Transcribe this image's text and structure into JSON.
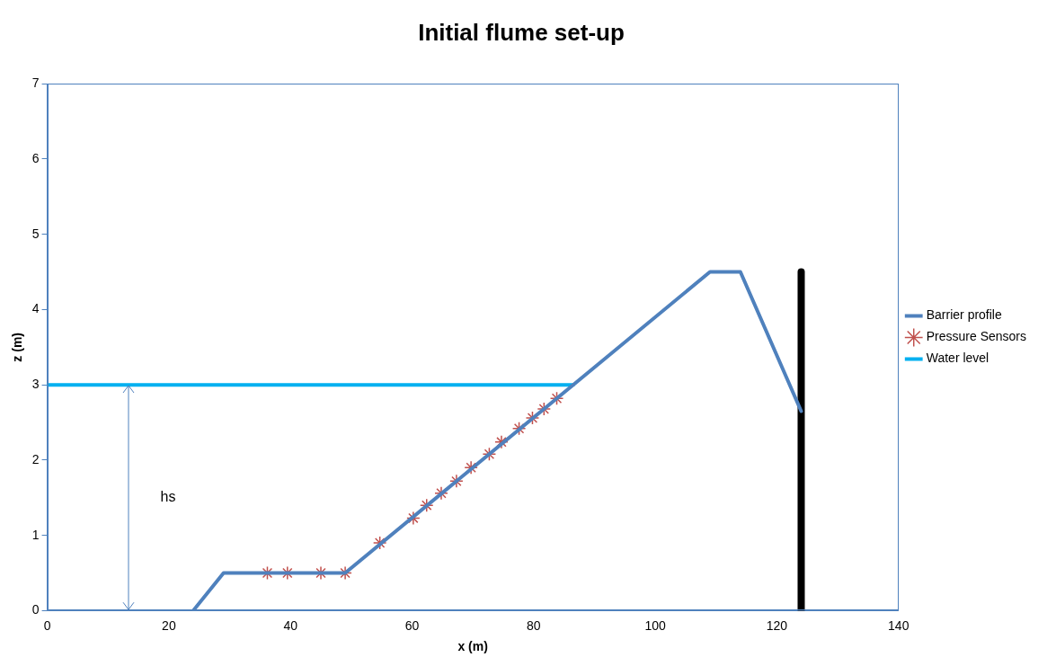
{
  "chart_data": {
    "type": "line",
    "title": "Initial flume set-up",
    "xlabel": "x (m)",
    "ylabel": "z (m)",
    "xlim": [
      0,
      140
    ],
    "xticks": [
      0,
      20,
      40,
      60,
      80,
      100,
      120,
      140
    ],
    "ylim": [
      0,
      7
    ],
    "yticks": [
      0,
      1,
      2,
      3,
      4,
      5,
      6,
      7
    ],
    "grid": false,
    "legend": "right",
    "annotations": [
      "hs"
    ],
    "series": [
      {
        "name": "Barrier profile",
        "color": "#4f81bd",
        "marker": "none",
        "x": [
          24,
          29,
          49,
          86.5,
          109,
          114,
          124
        ],
        "values": [
          0,
          0.5,
          0.5,
          3,
          4.5,
          4.5,
          2.65
        ]
      },
      {
        "name": "Pressure Sensors",
        "type": "scatter",
        "color": "#c0504d",
        "marker": "cross",
        "x": [
          36.2,
          39.5,
          45,
          49,
          54.7,
          60.2,
          62.4,
          64.8,
          67.3,
          69.7,
          72.7,
          74.7,
          77.6,
          79.8,
          81.7,
          83.8
        ],
        "values": [
          0.5,
          0.5,
          0.5,
          0.5,
          0.9,
          1.23,
          1.4,
          1.56,
          1.72,
          1.9,
          2.08,
          2.24,
          2.42,
          2.56,
          2.68,
          2.82
        ]
      },
      {
        "name": "Water level",
        "color": "#00b0f0",
        "marker": "none",
        "x": [
          0,
          86.5
        ],
        "values": [
          3,
          3
        ]
      },
      {
        "color": "#000000",
        "marker": "none",
        "x": [
          124,
          124
        ],
        "values": [
          0,
          4.5
        ]
      }
    ]
  }
}
